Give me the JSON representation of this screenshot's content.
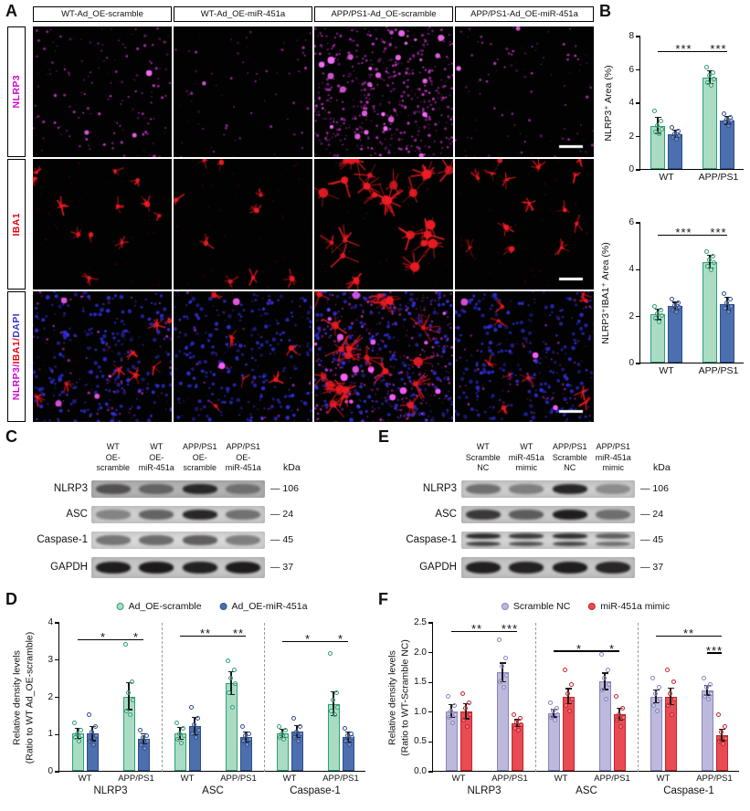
{
  "panels": {
    "A": "A",
    "B": "B",
    "C": "C",
    "D": "D",
    "E": "E",
    "F": "F"
  },
  "panelA": {
    "columns": [
      "WT-Ad_OE-scramble",
      "WT-Ad_OE-miR-451a",
      "APP/PS1-Ad_OE-scramble",
      "APP/PS1-Ad_OE-miR-451a"
    ],
    "rows": [
      {
        "parts": [
          {
            "text": "NLRP3",
            "color": "#d400d4"
          }
        ]
      },
      {
        "parts": [
          {
            "text": "IBA1",
            "color": "#e8000b"
          }
        ]
      },
      {
        "parts": [
          {
            "text": "NLRP3/",
            "color": "#d400d4"
          },
          {
            "text": "IBA1/",
            "color": "#e8000b"
          },
          {
            "text": "DAPI",
            "color": "#3535d0"
          }
        ]
      }
    ],
    "stain_colors": {
      "nlrp3": "#ff3eff",
      "iba1": "#eb1920",
      "dapi": "#3030e1"
    }
  },
  "panelC": {
    "kda_header": "kDa",
    "lanes": [
      [
        "WT",
        "OE-",
        "scramble"
      ],
      [
        "WT",
        "OE-",
        "miR-451a"
      ],
      [
        "APP/PS1",
        "OE-",
        "scramble"
      ],
      [
        "APP/PS1",
        "OE-",
        "miR-451a"
      ]
    ],
    "rows": [
      {
        "protein": "NLRP3",
        "kda": "106",
        "bg": "#b2b2b2",
        "bands": [
          0.62,
          0.5,
          0.88,
          0.42
        ]
      },
      {
        "protein": "ASC",
        "kda": "24",
        "bg": "#cfcfcf",
        "bands": [
          0.4,
          0.58,
          0.9,
          0.5
        ]
      },
      {
        "protein": "Caspase-1",
        "kda": "45",
        "bg": "#d8d8d8",
        "bands": [
          0.5,
          0.55,
          0.62,
          0.45
        ]
      },
      {
        "protein": "GAPDH",
        "kda": "37",
        "bg": "#c6c6c6",
        "bands": [
          0.95,
          0.97,
          0.93,
          0.96
        ]
      }
    ]
  },
  "panelE": {
    "kda_header": "kDa",
    "lanes": [
      [
        "WT",
        "Scramble",
        "NC"
      ],
      [
        "WT",
        "miR-451a",
        "mimic"
      ],
      [
        "APP/PS1",
        "Scramble",
        "NC"
      ],
      [
        "APP/PS1",
        "miR-451a",
        "mimic"
      ]
    ],
    "rows": [
      {
        "protein": "NLRP3",
        "kda": "106",
        "bg": "#cdcdcd",
        "bands": [
          0.5,
          0.42,
          0.9,
          0.35
        ]
      },
      {
        "protein": "ASC",
        "kda": "24",
        "bg": "#c9c9c9",
        "bands": [
          0.8,
          0.6,
          0.95,
          0.5
        ]
      },
      {
        "protein": "Caspase-1",
        "kda": "45",
        "bg": "#d2d2d2",
        "bands": [
          0.88,
          0.8,
          0.86,
          0.6
        ],
        "double": true
      },
      {
        "protein": "GAPDH",
        "kda": "37",
        "bg": "#c6c6c6",
        "bands": [
          0.94,
          0.92,
          0.95,
          0.9
        ]
      }
    ]
  },
  "series_styles": {
    "green": {
      "fill": "#aadcc4",
      "edge": "#2f9e74"
    },
    "blue": {
      "fill": "#4d6fae",
      "edge": "#2d4d8e"
    },
    "purple": {
      "fill": "#bcb9dc",
      "edge": "#8683bd"
    },
    "red": {
      "fill": "#e94b52",
      "edge": "#c3232c"
    }
  },
  "chart_data": [
    {
      "id": "B1",
      "type": "bar",
      "title": "",
      "ylabel": "NLRP3⁺ Area (%)",
      "ylim": [
        0,
        8
      ],
      "yticks": [
        {
          "v": 0,
          "label": "0"
        },
        {
          "v": 2,
          "label": "2"
        },
        {
          "v": 4,
          "label": "4"
        },
        {
          "v": 6,
          "label": "6"
        },
        {
          "v": 8,
          "label": "8"
        }
      ],
      "series": [
        "Ad_OE-scramble",
        "Ad_OE-miR-451a"
      ],
      "series_colors": [
        "green",
        "blue"
      ],
      "clusters": [
        {
          "xlabel": "WT",
          "bars": [
            {
              "s": 0,
              "v": 2.6,
              "e": 0.45,
              "pts": [
                3.5,
                2.9,
                2.6,
                2.4,
                2.2,
                2.1
              ]
            },
            {
              "s": 1,
              "v": 2.1,
              "e": 0.2,
              "pts": [
                2.5,
                2.3,
                2.1,
                2.0,
                1.9,
                1.8
              ]
            }
          ]
        },
        {
          "xlabel": "APP/PS1",
          "bars": [
            {
              "s": 0,
              "v": 5.5,
              "e": 0.35,
              "pts": [
                6.1,
                5.8,
                5.6,
                5.4,
                5.2,
                5.0
              ]
            },
            {
              "s": 1,
              "v": 2.9,
              "e": 0.2,
              "pts": [
                3.3,
                3.1,
                3.0,
                2.9,
                2.8,
                2.6
              ]
            }
          ]
        }
      ],
      "brackets": [
        {
          "b1": 0,
          "b2": 2,
          "y": 7.0,
          "label": "***"
        },
        {
          "b1": 2,
          "b2": 3,
          "y": 7.0,
          "label": "***"
        }
      ]
    },
    {
      "id": "B2",
      "type": "bar",
      "title": "",
      "ylabel": "NLRP3⁺IBA1⁺ Area (%)",
      "ylim": [
        0,
        6
      ],
      "yticks": [
        {
          "v": 0,
          "label": "0"
        },
        {
          "v": 2,
          "label": "2"
        },
        {
          "v": 4,
          "label": "4"
        },
        {
          "v": 6,
          "label": "6"
        }
      ],
      "series": [
        "Ad_OE-scramble",
        "Ad_OE-miR-451a"
      ],
      "series_colors": [
        "green",
        "blue"
      ],
      "clusters": [
        {
          "xlabel": "WT",
          "bars": [
            {
              "s": 0,
              "v": 2.05,
              "e": 0.2,
              "pts": [
                2.4,
                2.25,
                2.1,
                2.0,
                1.9,
                1.75
              ]
            },
            {
              "s": 1,
              "v": 2.4,
              "e": 0.15,
              "pts": [
                2.7,
                2.55,
                2.45,
                2.35,
                2.25,
                2.15
              ]
            }
          ]
        },
        {
          "xlabel": "APP/PS1",
          "bars": [
            {
              "s": 0,
              "v": 4.3,
              "e": 0.25,
              "pts": [
                4.75,
                4.55,
                4.4,
                4.25,
                4.1,
                3.95
              ]
            },
            {
              "s": 1,
              "v": 2.5,
              "e": 0.25,
              "pts": [
                2.95,
                2.7,
                2.55,
                2.4,
                2.3,
                2.15
              ]
            }
          ]
        }
      ],
      "brackets": [
        {
          "b1": 0,
          "b2": 2,
          "y": 5.4,
          "label": "***"
        },
        {
          "b1": 2,
          "b2": 3,
          "y": 5.4,
          "label": "***"
        }
      ]
    },
    {
      "id": "D",
      "type": "bar",
      "title": "",
      "ylabel_lines": [
        "Relative density levels",
        "(Ratio to WT Ad_OE-scramble)"
      ],
      "ylim": [
        0,
        4
      ],
      "yticks": [
        {
          "v": 0,
          "label": "0"
        },
        {
          "v": 1,
          "label": "1"
        },
        {
          "v": 2,
          "label": "2"
        },
        {
          "v": 3,
          "label": "3"
        },
        {
          "v": 4,
          "label": "4"
        }
      ],
      "series": [
        "Ad_OE-scramble",
        "Ad_OE-miR-451a"
      ],
      "series_colors": [
        "green",
        "blue"
      ],
      "legend": [
        {
          "label": "Ad_OE-scramble",
          "series": 0
        },
        {
          "label": "Ad_OE-miR-451a",
          "series": 1
        }
      ],
      "separators": [
        0.3333,
        0.6667
      ],
      "groups": [
        {
          "label": "NLRP3",
          "from": 0,
          "to": 1
        },
        {
          "label": "ASC",
          "from": 2,
          "to": 3
        },
        {
          "label": "Caspase-1",
          "from": 4,
          "to": 5
        }
      ],
      "clusters": [
        {
          "xlabel": "WT",
          "bars": [
            {
              "s": 0,
              "v": 1.0,
              "e": 0.12,
              "pts": [
                1.3,
                1.1,
                1.0,
                0.95,
                0.9,
                0.8
              ]
            },
            {
              "s": 1,
              "v": 1.0,
              "e": 0.18,
              "pts": [
                1.5,
                1.2,
                1.05,
                0.95,
                0.8,
                0.7
              ]
            }
          ]
        },
        {
          "xlabel": "APP/PS1",
          "bars": [
            {
              "s": 0,
              "v": 2.0,
              "e": 0.35,
              "pts": [
                3.4,
                2.4,
                2.1,
                1.9,
                1.6,
                1.5
              ]
            },
            {
              "s": 1,
              "v": 0.85,
              "e": 0.12,
              "pts": [
                1.1,
                0.95,
                0.9,
                0.8,
                0.7,
                0.6
              ]
            }
          ]
        },
        {
          "xlabel": "WT",
          "bars": [
            {
              "s": 0,
              "v": 1.0,
              "e": 0.15,
              "pts": [
                1.3,
                1.15,
                1.0,
                0.95,
                0.85,
                0.75
              ]
            },
            {
              "s": 1,
              "v": 1.2,
              "e": 0.22,
              "pts": [
                1.7,
                1.4,
                1.25,
                1.1,
                1.0,
                0.9
              ]
            }
          ]
        },
        {
          "xlabel": "APP/PS1",
          "bars": [
            {
              "s": 0,
              "v": 2.35,
              "e": 0.3,
              "pts": [
                2.95,
                2.7,
                2.5,
                2.35,
                2.1,
                1.7
              ]
            },
            {
              "s": 1,
              "v": 0.9,
              "e": 0.12,
              "pts": [
                1.2,
                1.0,
                0.95,
                0.85,
                0.8,
                0.7
              ]
            }
          ]
        },
        {
          "xlabel": "WT",
          "bars": [
            {
              "s": 0,
              "v": 1.0,
              "e": 0.1,
              "pts": [
                1.2,
                1.1,
                1.0,
                0.95,
                0.9,
                0.85
              ]
            },
            {
              "s": 1,
              "v": 1.05,
              "e": 0.15,
              "pts": [
                1.4,
                1.2,
                1.05,
                1.0,
                0.9,
                0.8
              ]
            }
          ]
        },
        {
          "xlabel": "APP/PS1",
          "bars": [
            {
              "s": 0,
              "v": 1.8,
              "e": 0.3,
              "pts": [
                3.15,
                2.1,
                1.9,
                1.7,
                1.6,
                1.5
              ]
            },
            {
              "s": 1,
              "v": 0.9,
              "e": 0.12,
              "pts": [
                1.15,
                1.0,
                0.95,
                0.9,
                0.8,
                0.7
              ]
            }
          ]
        }
      ],
      "brackets": [
        {
          "b1": 0,
          "b2": 2,
          "y": 3.5,
          "label": "*"
        },
        {
          "b1": 2,
          "b2": 3,
          "y": 3.5,
          "label": "*"
        },
        {
          "b1": 4,
          "b2": 6,
          "y": 3.6,
          "label": "**"
        },
        {
          "b1": 6,
          "b2": 7,
          "y": 3.6,
          "label": "**"
        },
        {
          "b1": 8,
          "b2": 10,
          "y": 3.45,
          "label": "*"
        },
        {
          "b1": 10,
          "b2": 11,
          "y": 3.45,
          "label": "*"
        }
      ]
    },
    {
      "id": "F",
      "type": "bar",
      "title": "",
      "ylabel_lines": [
        "Relative density levels",
        "(Ratio to WT-Scramble NC)"
      ],
      "ylim": [
        0,
        2.5
      ],
      "yticks": [
        {
          "v": 0,
          "label": "0.0"
        },
        {
          "v": 0.5,
          "label": "0.5"
        },
        {
          "v": 1,
          "label": "1.0"
        },
        {
          "v": 1.5,
          "label": "1.5"
        },
        {
          "v": 2,
          "label": "2.0"
        },
        {
          "v": 2.5,
          "label": "2.5"
        }
      ],
      "series": [
        "Scramble NC",
        "miR-451a mimic"
      ],
      "series_colors": [
        "purple",
        "red"
      ],
      "legend": [
        {
          "label": "Scramble NC",
          "series": 0
        },
        {
          "label": "miR-451a mimic",
          "series": 1
        }
      ],
      "separators": [
        0.3333,
        0.6667
      ],
      "groups": [
        {
          "label": "NLRP3",
          "from": 0,
          "to": 1
        },
        {
          "label": "ASC",
          "from": 2,
          "to": 3
        },
        {
          "label": "Caspase-1",
          "from": 4,
          "to": 5
        }
      ],
      "clusters": [
        {
          "xlabel": "WT",
          "bars": [
            {
              "s": 0,
              "v": 1.0,
              "e": 0.1,
              "pts": [
                1.25,
                1.1,
                1.0,
                0.95,
                0.9,
                0.8
              ]
            },
            {
              "s": 1,
              "v": 1.0,
              "e": 0.12,
              "pts": [
                1.3,
                1.15,
                1.05,
                0.95,
                0.85,
                0.75
              ]
            }
          ]
        },
        {
          "xlabel": "APP/PS1",
          "bars": [
            {
              "s": 0,
              "v": 1.65,
              "e": 0.15,
              "pts": [
                2.2,
                1.9,
                1.75,
                1.6,
                1.5,
                1.4
              ]
            },
            {
              "s": 1,
              "v": 0.8,
              "e": 0.05,
              "pts": [
                0.95,
                0.88,
                0.82,
                0.78,
                0.72,
                0.68
              ]
            }
          ]
        },
        {
          "xlabel": "WT",
          "bars": [
            {
              "s": 0,
              "v": 0.97,
              "e": 0.06,
              "pts": [
                1.15,
                1.05,
                1.0,
                0.95,
                0.9,
                0.85
              ]
            },
            {
              "s": 1,
              "v": 1.25,
              "e": 0.12,
              "pts": [
                1.7,
                1.45,
                1.3,
                1.2,
                1.1,
                1.0
              ]
            }
          ]
        },
        {
          "xlabel": "APP/PS1",
          "bars": [
            {
              "s": 0,
              "v": 1.5,
              "e": 0.13,
              "pts": [
                1.95,
                1.7,
                1.55,
                1.45,
                1.35,
                1.2
              ]
            },
            {
              "s": 1,
              "v": 0.95,
              "e": 0.09,
              "pts": [
                1.25,
                1.05,
                0.95,
                0.9,
                0.85,
                0.75
              ]
            }
          ]
        },
        {
          "xlabel": "WT",
          "bars": [
            {
              "s": 0,
              "v": 1.25,
              "e": 0.1,
              "pts": [
                1.55,
                1.4,
                1.3,
                1.2,
                1.1,
                1.0
              ]
            },
            {
              "s": 1,
              "v": 1.25,
              "e": 0.13,
              "pts": [
                1.7,
                1.5,
                1.3,
                1.2,
                1.1,
                0.95
              ]
            }
          ]
        },
        {
          "xlabel": "APP/PS1",
          "bars": [
            {
              "s": 0,
              "v": 1.35,
              "e": 0.07,
              "pts": [
                1.55,
                1.45,
                1.4,
                1.3,
                1.25,
                1.2
              ]
            },
            {
              "s": 1,
              "v": 0.6,
              "e": 0.09,
              "pts": [
                0.95,
                0.75,
                0.65,
                0.55,
                0.5,
                0.45
              ]
            }
          ]
        }
      ],
      "brackets": [
        {
          "b1": 0,
          "b2": 2,
          "y": 2.33,
          "label": "**"
        },
        {
          "b1": 2,
          "b2": 3,
          "y": 2.33,
          "label": "***"
        },
        {
          "b1": 4,
          "b2": 6,
          "y": 2.0,
          "label": "*"
        },
        {
          "b1": 6,
          "b2": 7,
          "y": 2.0,
          "label": "*"
        },
        {
          "b1": 8,
          "b2": 11,
          "y": 2.25,
          "label": "**"
        },
        {
          "b1": 10,
          "b2": 11,
          "y": 1.97,
          "label": "***"
        }
      ]
    }
  ]
}
